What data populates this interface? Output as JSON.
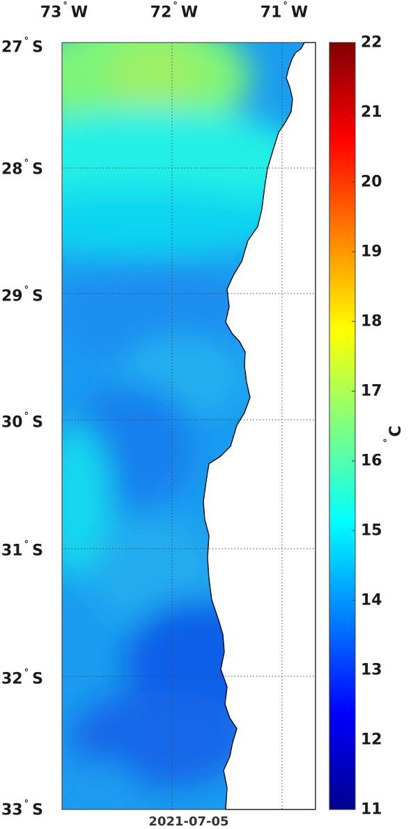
{
  "map": {
    "lon_labels": [
      {
        "deg": "73",
        "hemi": "W",
        "lon": -73
      },
      {
        "deg": "72",
        "hemi": "W",
        "lon": -72
      },
      {
        "deg": "71",
        "hemi": "W",
        "lon": -71
      }
    ],
    "lat_labels": [
      {
        "deg": "27",
        "hemi": "S",
        "lat": -27
      },
      {
        "deg": "28",
        "hemi": "S",
        "lat": -28
      },
      {
        "deg": "29",
        "hemi": "S",
        "lat": -29
      },
      {
        "deg": "30",
        "hemi": "S",
        "lat": -30
      },
      {
        "deg": "31",
        "hemi": "S",
        "lat": -31
      },
      {
        "deg": "32",
        "hemi": "S",
        "lat": -32
      },
      {
        "deg": "33",
        "hemi": "S",
        "lat": -33
      }
    ],
    "lon_range": [
      -73.0,
      -70.7
    ],
    "lat_range": [
      -33.0,
      -27.0
    ],
    "date": "2021-07-05",
    "grid": "dotted",
    "land_color": "#ffffff"
  },
  "colorbar": {
    "ticks": [
      "11",
      "12",
      "13",
      "14",
      "15",
      "16",
      "17",
      "18",
      "19",
      "20",
      "21",
      "22"
    ],
    "min": 11,
    "max": 22,
    "unit_deg": "°",
    "unit": "C",
    "colormap": "jet"
  }
}
